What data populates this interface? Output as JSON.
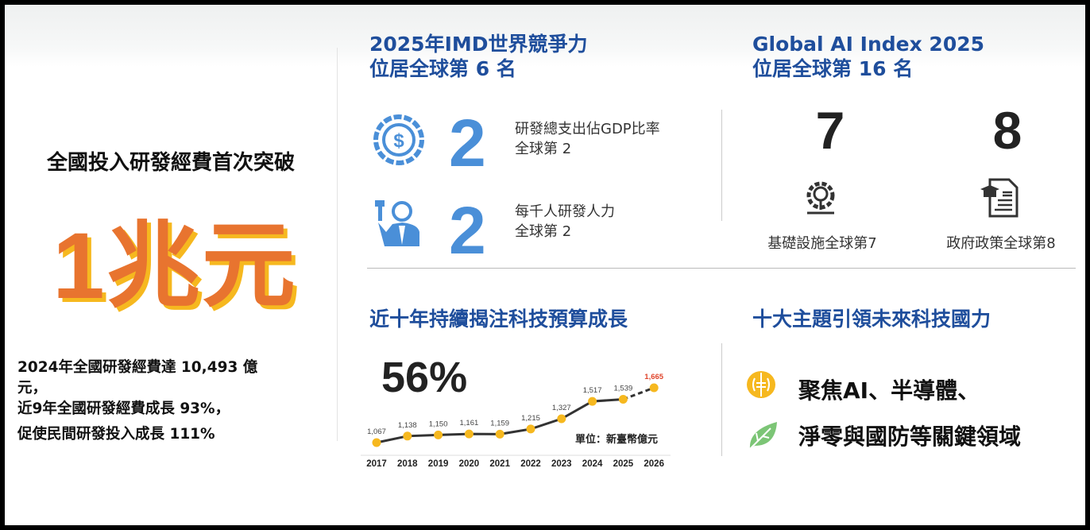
{
  "left": {
    "headline": "全國投入研發經費首次突破",
    "big_number": "1兆元",
    "summary_lines": [
      "2024年全國研發經費達 10,493 億",
      "元，",
      "近9年全國研發經費成長 93%，",
      "促使民間研發投入成長 111%"
    ]
  },
  "imd": {
    "title_line1": "2025年IMD世界競爭力",
    "title_line2": "位居全球第 6 名",
    "items": [
      {
        "icon": "dollar-coin-icon",
        "rank": "2",
        "label_line1": "研發總支出佔GDP比率",
        "label_line2": "全球第 2"
      },
      {
        "icon": "researcher-icon",
        "rank": "2",
        "label_line1": "每千人研發人力",
        "label_line2": "全球第 2"
      }
    ]
  },
  "ai_index": {
    "title_line1": "Global AI Index 2025",
    "title_line2": "位居全球第 16 名",
    "items": [
      {
        "icon": "gear-bulb-icon",
        "rank": "7",
        "label": "基礎設施全球第7"
      },
      {
        "icon": "policy-document-icon",
        "rank": "8",
        "label": "政府政策全球第8"
      }
    ]
  },
  "budget": {
    "title": "近十年持續揭注科技預算成長",
    "growth": "56%",
    "unit": "單位：新臺幣億元"
  },
  "themes": {
    "title": "十大主題引領未來科技國力",
    "line1": "聚焦AI、半導體、",
    "line2": "淨零與國防等關鍵領域"
  },
  "colors": {
    "accent_blue": "#1f4e9c",
    "icon_blue": "#4a8fd8",
    "orange": "#e8742f",
    "yellow": "#f6b81f",
    "forecast_red": "#e0452c"
  },
  "chart_data": {
    "type": "line",
    "categories": [
      "2017",
      "2018",
      "2019",
      "2020",
      "2021",
      "2022",
      "2023",
      "2024",
      "2025",
      "2026"
    ],
    "values": [
      1067,
      1138,
      1150,
      1161,
      1159,
      1215,
      1327,
      1517,
      1539,
      1665
    ],
    "value_labels": [
      "1,067",
      "1,138",
      "1,150",
      "1,161",
      "1,159",
      "1,215",
      "1,327",
      "1,517",
      "1,539",
      "1,665"
    ],
    "forecast_from_index": 8,
    "ylim": [
      1067,
      1665
    ],
    "ylabel": "單位：新臺幣億元",
    "grid": false
  }
}
